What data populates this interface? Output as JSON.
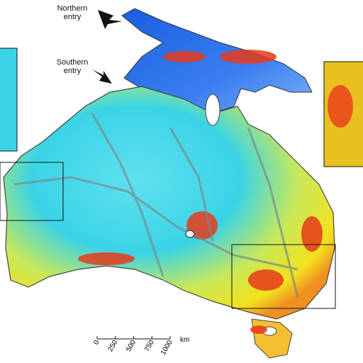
{
  "annotations": [
    {
      "label": "Northern entry"
    },
    {
      "label": "Southern entry"
    }
  ],
  "scale_bar": {
    "ticks": [
      0,
      250,
      500,
      750,
      1000
    ],
    "unit": "km"
  }
}
